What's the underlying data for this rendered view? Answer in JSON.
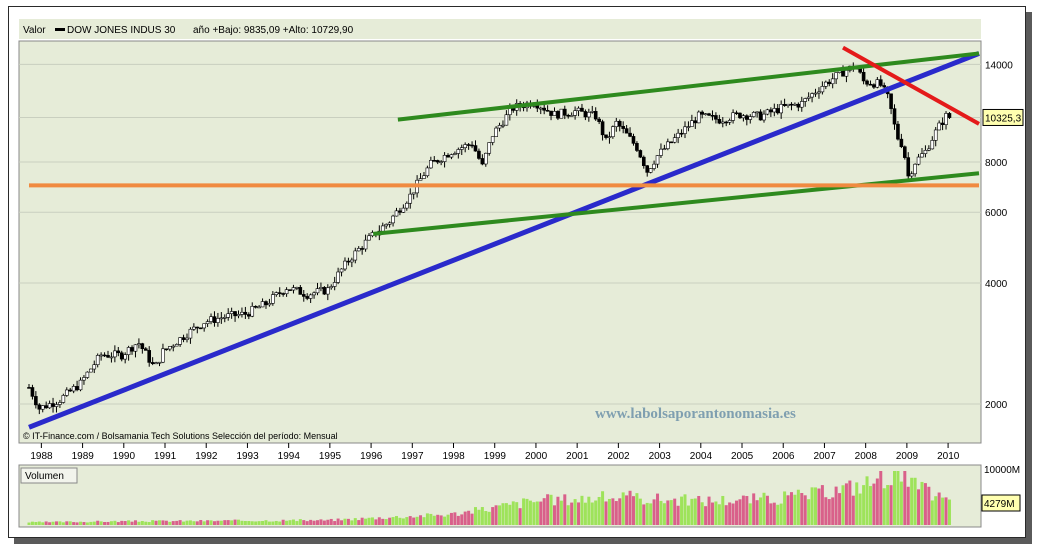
{
  "header": {
    "valor_label": "Valor",
    "symbol": "DOW JONES INDUS 30",
    "stats": "año +Bajo: 9835,09 +Alto: 10729,90"
  },
  "credit": "© IT-Finance.com / Bolsamania Tech Solutions  Selección del período: Mensual",
  "watermark": "www.labolsaporantonomasia.es",
  "volume_label": "Volumen",
  "volume_ticks": {
    "max": "10000M",
    "current": "4279M"
  },
  "colors": {
    "panel": "#e6ecd8",
    "up": "#7cd63a",
    "down": "#c0304a",
    "vol_up": "#9ee35a",
    "vol_down": "#d9608a",
    "blue": "#2a2acb",
    "green": "#2e8a1e",
    "red": "#e41a1a",
    "orange": "#f08a40",
    "grid": "#c9cfbf"
  },
  "chart_data": {
    "type": "candlestick",
    "scale": "log",
    "frequency": "monthly",
    "x_tick_labels": [
      "1988",
      "1989",
      "1990",
      "1991",
      "1992",
      "1993",
      "1994",
      "1995",
      "1996",
      "1997",
      "1998",
      "1999",
      "2000",
      "2001",
      "2002",
      "2003",
      "2004",
      "2005",
      "2006",
      "2007",
      "2008",
      "2009",
      "2010"
    ],
    "y_tick_labels": [
      "14000",
      "10325,3",
      "8000",
      "6000",
      "4000",
      "2000"
    ],
    "last_value": 10325.3,
    "ylim": [
      1600,
      16000
    ],
    "close_path": [
      [
        1987.75,
        2200
      ],
      [
        1988.0,
        1950
      ],
      [
        1988.5,
        2050
      ],
      [
        1989.0,
        2250
      ],
      [
        1989.5,
        2650
      ],
      [
        1990.0,
        2650
      ],
      [
        1990.4,
        2850
      ],
      [
        1990.8,
        2450
      ],
      [
        1991.0,
        2700
      ],
      [
        1991.5,
        2950
      ],
      [
        1992.0,
        3200
      ],
      [
        1992.5,
        3300
      ],
      [
        1993.0,
        3350
      ],
      [
        1993.5,
        3550
      ],
      [
        1994.0,
        3900
      ],
      [
        1994.5,
        3750
      ],
      [
        1995.0,
        3850
      ],
      [
        1995.5,
        4550
      ],
      [
        1996.0,
        5150
      ],
      [
        1996.5,
        5700
      ],
      [
        1997.0,
        6600
      ],
      [
        1997.5,
        7900
      ],
      [
        1998.0,
        8500
      ],
      [
        1998.5,
        8900
      ],
      [
        1998.75,
        7800
      ],
      [
        1999.0,
        9350
      ],
      [
        1999.5,
        10900
      ],
      [
        2000.0,
        11300
      ],
      [
        2000.5,
        10500
      ],
      [
        2001.0,
        10700
      ],
      [
        2001.5,
        10400
      ],
      [
        2001.75,
        9000
      ],
      [
        2002.0,
        10000
      ],
      [
        2002.5,
        8700
      ],
      [
        2002.75,
        7600
      ],
      [
        2003.0,
        8300
      ],
      [
        2003.5,
        9300
      ],
      [
        2004.0,
        10400
      ],
      [
        2004.5,
        10200
      ],
      [
        2005.0,
        10500
      ],
      [
        2005.5,
        10400
      ],
      [
        2006.0,
        10900
      ],
      [
        2006.5,
        11200
      ],
      [
        2007.0,
        12400
      ],
      [
        2007.5,
        13400
      ],
      [
        2007.8,
        13900
      ],
      [
        2008.0,
        12700
      ],
      [
        2008.4,
        12500
      ],
      [
        2008.6,
        11500
      ],
      [
        2008.8,
        9300
      ],
      [
        2008.95,
        8800
      ],
      [
        2009.1,
        7200
      ],
      [
        2009.2,
        7900
      ],
      [
        2009.5,
        8500
      ],
      [
        2009.8,
        9700
      ],
      [
        2010.0,
        10400
      ],
      [
        2010.1,
        10325.3
      ]
    ],
    "volume_path": [
      [
        1987.75,
        0.05
      ],
      [
        1990,
        0.07
      ],
      [
        1995,
        0.09
      ],
      [
        1998,
        0.2
      ],
      [
        1999,
        0.32
      ],
      [
        2000,
        0.45
      ],
      [
        2002,
        0.52
      ],
      [
        2004,
        0.45
      ],
      [
        2006,
        0.5
      ],
      [
        2007,
        0.6
      ],
      [
        2008,
        0.75
      ],
      [
        2008.8,
        1.0
      ],
      [
        2009.3,
        0.7
      ],
      [
        2010.1,
        0.43
      ]
    ],
    "trendlines": [
      {
        "color": "blue",
        "from": [
          1987.75,
          1750
        ],
        "to": [
          2010.8,
          14900
        ]
      },
      {
        "color": "green",
        "from": [
          1996.7,
          10200
        ],
        "to": [
          2010.8,
          14900
        ]
      },
      {
        "color": "green",
        "from": [
          1996.1,
          5300
        ],
        "to": [
          2010.8,
          7500
        ]
      },
      {
        "color": "red",
        "from": [
          2007.5,
          15400
        ],
        "to": [
          2010.8,
          9950
        ]
      },
      {
        "color": "orange",
        "from": [
          1987.75,
          7000
        ],
        "to": [
          2010.8,
          7000
        ]
      }
    ]
  }
}
